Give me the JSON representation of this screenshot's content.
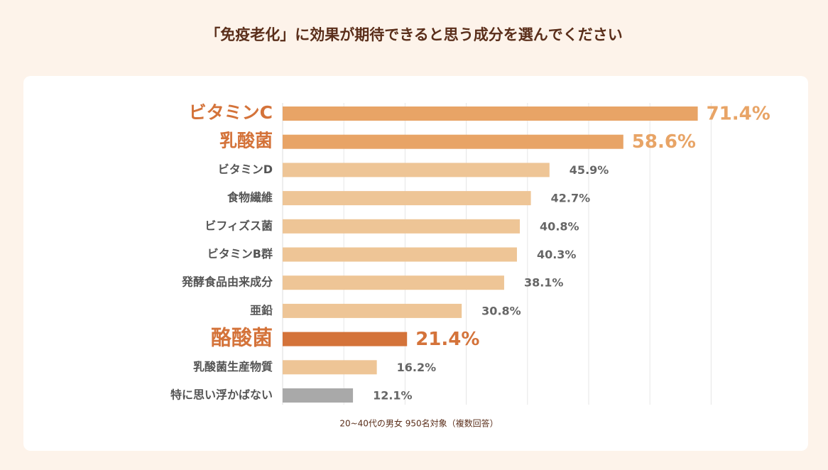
{
  "chart_data": {
    "type": "bar",
    "orientation": "horizontal",
    "title": "「免疫老化」に効果が期待できると思う成分を選んでください",
    "categories": [
      "ビタミンC",
      "乳酸菌",
      "ビタミンD",
      "食物繊維",
      "ビフィズス菌",
      "ビタミンB群",
      "発酵食品由来成分",
      "亜鉛",
      "酪酸菌",
      "乳酸菌生産物質",
      "特に思い浮かばない"
    ],
    "values": [
      71.4,
      58.6,
      45.9,
      42.7,
      40.8,
      40.3,
      38.1,
      30.8,
      21.4,
      16.2,
      12.1
    ],
    "value_labels": [
      "71.4%",
      "58.6%",
      "45.9%",
      "42.7%",
      "40.8%",
      "40.3%",
      "38.1%",
      "30.8%",
      "21.4%",
      "16.2%",
      "12.1%"
    ],
    "colors": [
      "#e8a466",
      "#e8a466",
      "#eec596",
      "#eec596",
      "#eec596",
      "#eec596",
      "#eec596",
      "#eec596",
      "#d4733a",
      "#eec596",
      "#a9a9a9"
    ],
    "highlight": [
      true,
      true,
      false,
      false,
      false,
      false,
      false,
      false,
      true,
      false,
      false
    ],
    "xlim": [
      0,
      80
    ],
    "note": "20~40代の男女 950名対象（複数回答）"
  }
}
